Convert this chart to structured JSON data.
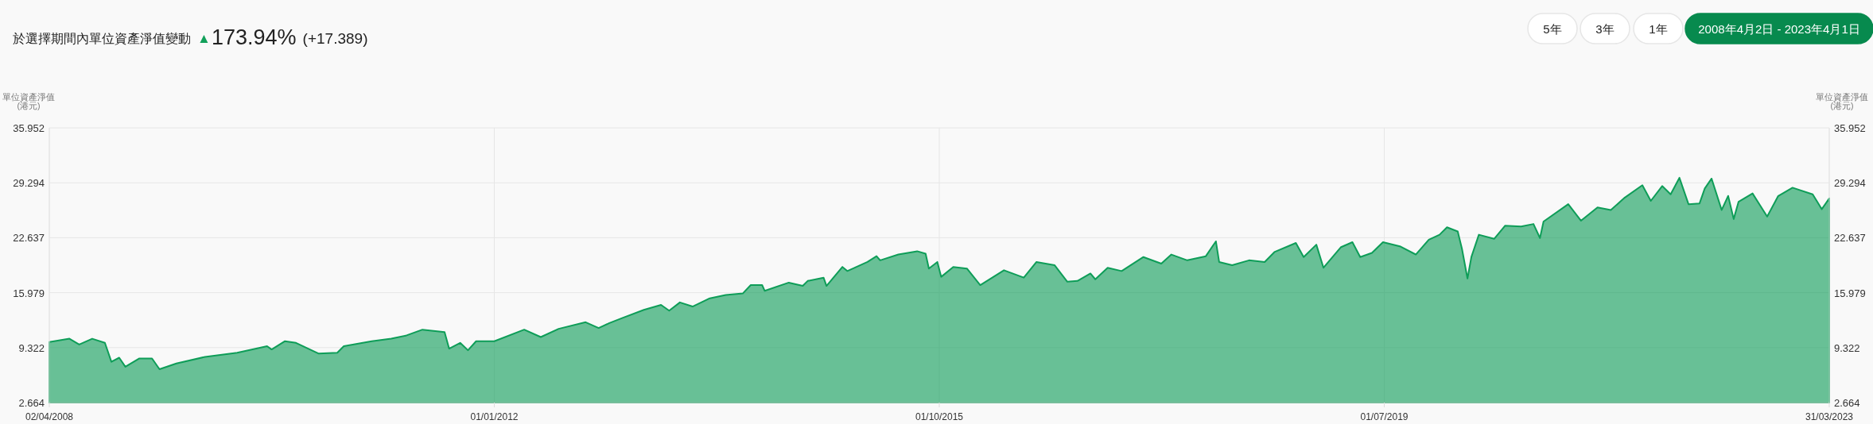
{
  "chart_data": {
    "type": "area",
    "title": "於選擇期間內單位資產淨值變動",
    "ylabel": "單位資產淨值\n(港元)",
    "y2label": "單位資產淨值\n(港元)",
    "annotations": [
      "▲",
      "173.94%",
      "(+17.389)",
      "5年",
      "3年",
      "1年",
      "2008年4月2日 - 2023年4月1日"
    ],
    "xlim": [
      "2008-04-02",
      "2023-03-31"
    ],
    "xticks": [
      {
        "value": "2008-04-02",
        "label": "02/04/2008"
      },
      {
        "value": "2012-01-01",
        "label": "01/01/2012"
      },
      {
        "value": "2015-10-01",
        "label": "01/10/2015"
      },
      {
        "value": "2019-07-01",
        "label": "01/07/2019"
      },
      {
        "value": "2023-03-31",
        "label": "31/03/2023"
      }
    ],
    "ylim": [
      2.664,
      35.952
    ],
    "yticks": [
      2.664,
      9.322,
      15.979,
      22.637,
      29.294,
      35.952
    ],
    "y2lim": [
      2.664,
      35.952
    ],
    "y2ticks": [
      2.664,
      9.322,
      15.979,
      22.637,
      29.294,
      35.952
    ],
    "grid": true,
    "x": [
      "2008-04-02",
      "2008-06-03",
      "2008-07-03",
      "2008-08-12",
      "2008-09-20",
      "2008-10-10",
      "2008-11-03",
      "2008-11-22",
      "2009-01-03",
      "2009-02-12",
      "2009-03-07",
      "2009-04-28",
      "2009-07-25",
      "2009-11-01",
      "2010-02-01",
      "2010-02-15",
      "2010-03-28",
      "2010-05-01",
      "2010-07-10",
      "2010-09-05",
      "2010-09-25",
      "2010-12-20",
      "2011-02-18",
      "2011-04-06",
      "2011-05-25",
      "2011-08-01",
      "2011-08-15",
      "2011-09-18",
      "2011-10-12",
      "2011-11-06",
      "2012-01-01",
      "2012-04-02",
      "2012-05-23",
      "2012-07-17",
      "2012-10-08",
      "2012-11-17",
      "2012-12-20",
      "2013-01-28",
      "2013-04-05",
      "2013-05-28",
      "2013-06-22",
      "2013-07-25",
      "2013-09-02",
      "2013-10-25",
      "2013-12-13",
      "2014-02-04",
      "2014-02-28",
      "2014-04-04",
      "2014-04-12",
      "2014-06-25",
      "2014-08-07",
      "2014-08-22",
      "2014-10-10",
      "2014-10-19",
      "2014-12-07",
      "2014-12-22",
      "2015-02-22",
      "2015-03-22",
      "2015-04-02",
      "2015-05-28",
      "2015-07-25",
      "2015-08-20",
      "2015-08-30",
      "2015-09-25",
      "2015-10-07",
      "2015-11-13",
      "2015-12-25",
      "2016-02-04",
      "2016-04-17",
      "2016-06-17",
      "2016-07-26",
      "2016-09-20",
      "2016-10-29",
      "2016-11-29",
      "2017-01-08",
      "2017-01-23",
      "2017-03-02",
      "2017-04-14",
      "2017-06-20",
      "2017-08-14",
      "2017-09-14",
      "2017-11-02",
      "2017-12-29",
      "2018-01-29",
      "2018-02-08",
      "2018-03-20",
      "2018-05-11",
      "2018-06-28",
      "2018-07-28",
      "2018-10-02",
      "2018-10-26",
      "2018-12-04",
      "2018-12-26",
      "2019-02-18",
      "2019-03-25",
      "2019-04-18",
      "2019-05-24",
      "2019-06-27",
      "2019-08-18",
      "2019-10-06",
      "2019-11-15",
      "2019-12-18",
      "2020-01-10",
      "2020-02-12",
      "2020-02-25",
      "2020-03-13",
      "2020-03-25",
      "2020-04-17",
      "2020-06-03",
      "2020-07-07",
      "2020-08-25",
      "2020-10-02",
      "2020-10-22",
      "2020-11-02",
      "2021-01-17",
      "2021-02-25",
      "2021-04-17",
      "2021-05-28",
      "2021-07-10",
      "2021-09-02",
      "2021-09-28",
      "2021-11-02",
      "2021-11-28",
      "2021-12-25",
      "2022-01-22",
      "2022-02-25",
      "2022-03-13",
      "2022-04-03",
      "2022-05-04",
      "2022-05-24",
      "2022-06-10",
      "2022-06-25",
      "2022-08-07",
      "2022-09-21",
      "2022-10-25",
      "2022-12-08",
      "2023-02-08",
      "2023-03-08",
      "2023-03-31"
    ],
    "series": [
      {
        "color": "#0e9d58",
        "values": [
          10.0,
          10.4,
          9.7,
          10.4,
          9.9,
          7.6,
          8.1,
          7.0,
          8.0,
          8.0,
          6.7,
          7.4,
          8.2,
          8.7,
          9.5,
          9.1,
          10.1,
          9.9,
          8.6,
          8.7,
          9.5,
          10.1,
          10.4,
          10.8,
          11.5,
          11.2,
          9.2,
          9.9,
          9.0,
          10.1,
          10.1,
          11.5,
          10.6,
          11.6,
          12.4,
          11.7,
          12.3,
          12.9,
          13.9,
          14.5,
          13.8,
          14.8,
          14.3,
          15.3,
          15.7,
          15.9,
          16.9,
          16.9,
          16.2,
          17.2,
          16.8,
          17.4,
          17.8,
          16.8,
          19.1,
          18.6,
          19.7,
          20.4,
          19.9,
          20.6,
          21.0,
          20.7,
          18.9,
          19.7,
          17.9,
          19.1,
          18.9,
          16.9,
          18.7,
          17.8,
          19.7,
          19.3,
          17.3,
          17.4,
          18.3,
          17.6,
          19.0,
          18.6,
          20.3,
          19.5,
          20.6,
          19.9,
          20.4,
          22.2,
          19.7,
          19.3,
          19.9,
          19.7,
          20.9,
          22.0,
          20.3,
          21.8,
          19.0,
          21.5,
          22.1,
          20.3,
          20.8,
          22.1,
          21.6,
          20.6,
          22.4,
          23.0,
          23.9,
          23.4,
          21.3,
          17.7,
          20.3,
          23.0,
          22.5,
          24.1,
          24.0,
          24.3,
          22.6,
          24.6,
          26.7,
          24.7,
          26.3,
          26.0,
          27.5,
          29.0,
          27.1,
          28.9,
          27.9,
          29.9,
          26.7,
          26.8,
          28.6,
          29.8,
          26.0,
          27.7,
          24.9,
          27.0,
          28.0,
          25.2,
          27.7,
          28.7,
          27.9,
          26.1,
          27.4
        ]
      }
    ]
  }
}
